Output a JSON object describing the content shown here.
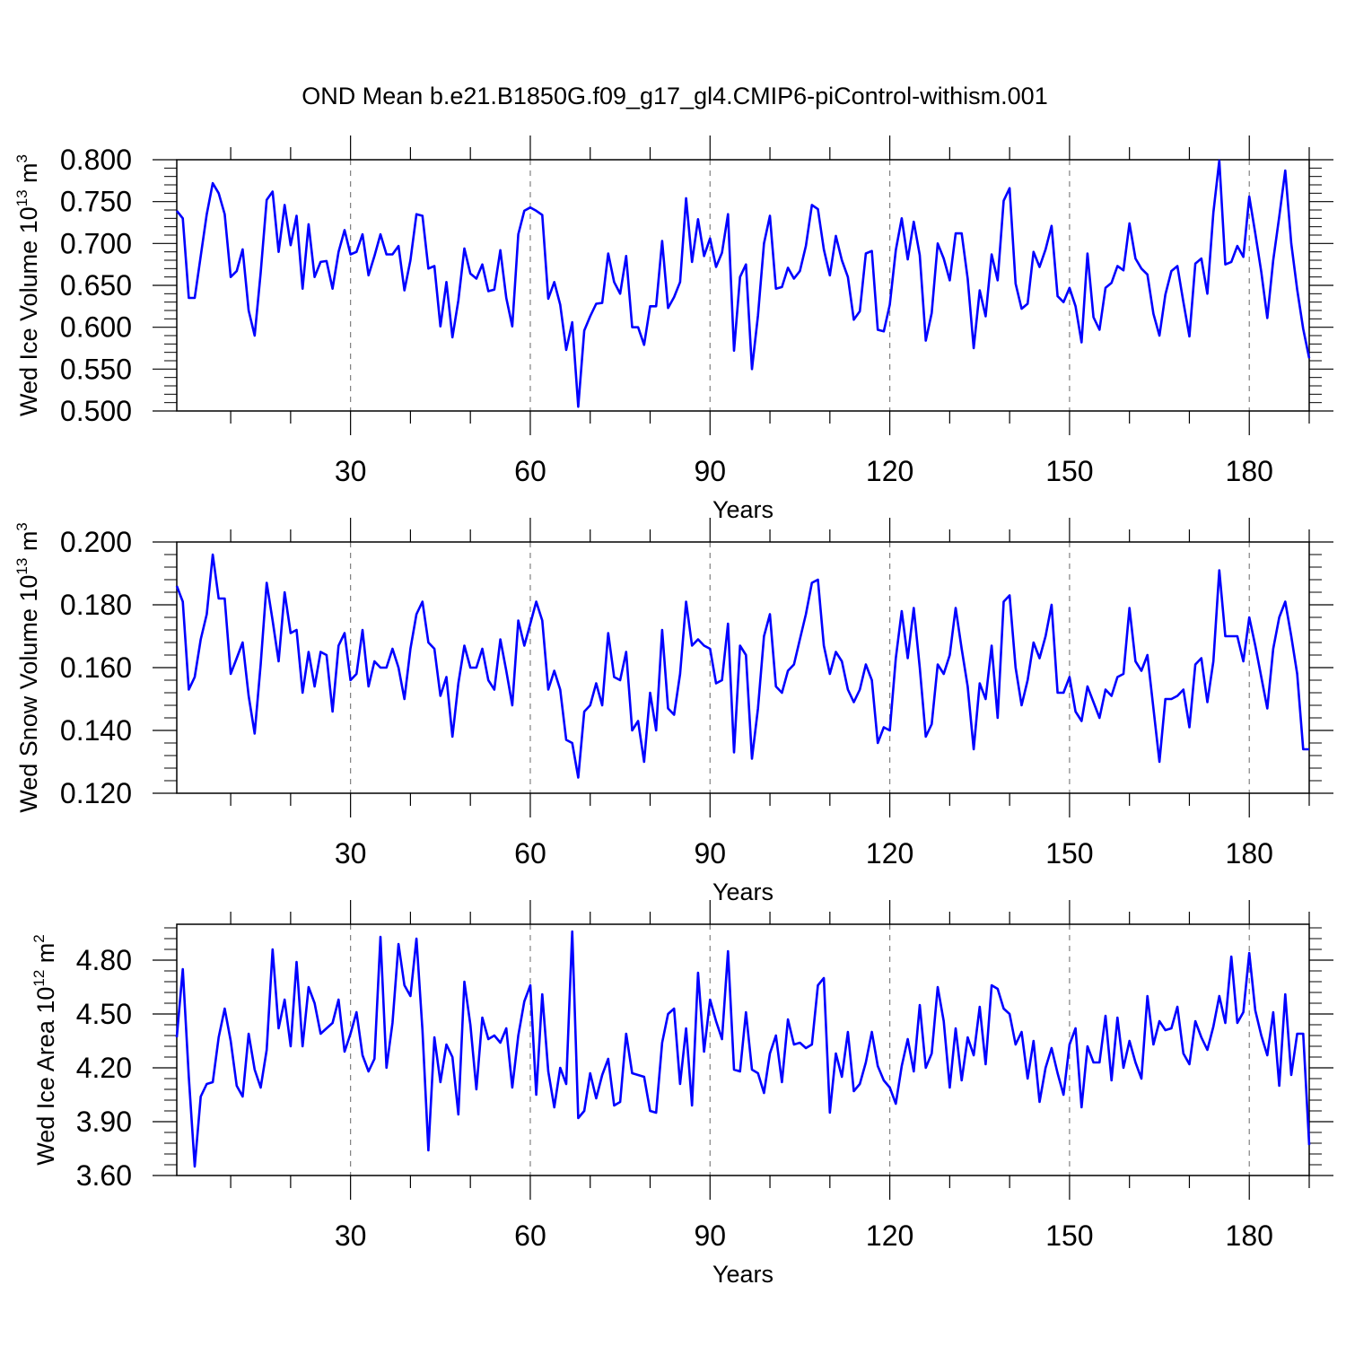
{
  "title": "OND Mean b.e21.B1850G.f09_g17_gl4.CMIP6-piControl-withism.001",
  "colors": {
    "line": "#0000ff",
    "axis": "#000000",
    "grid": "#808080",
    "background": "#ffffff"
  },
  "chart_data": [
    {
      "type": "line",
      "title": "OND Mean b.e21.B1850G.f09_g17_gl4.CMIP6-piControl-withism.001",
      "xlabel": "Years",
      "ylabel": {
        "main": "Wed Ice Volume 10",
        "exp": "13",
        "unit": " m",
        "unit_exp": "3"
      },
      "xlim": [
        1,
        190
      ],
      "ylim": [
        0.5,
        0.8
      ],
      "xticks": [
        30,
        60,
        90,
        120,
        150,
        180
      ],
      "xtick_labels": [
        "30",
        "60",
        "90",
        "120",
        "150",
        "180"
      ],
      "yticks": [
        0.5,
        0.55,
        0.6,
        0.65,
        0.7,
        0.75,
        0.8
      ],
      "ytick_labels": [
        "0.500",
        "0.550",
        "0.600",
        "0.650",
        "0.700",
        "0.750",
        "0.800"
      ],
      "x_start": 1,
      "series": [
        {
          "name": "Wed Ice Volume",
          "values": [
            0.739,
            0.73,
            0.635,
            0.635,
            0.685,
            0.735,
            0.772,
            0.76,
            0.735,
            0.66,
            0.667,
            0.693,
            0.62,
            0.59,
            0.665,
            0.752,
            0.762,
            0.69,
            0.746,
            0.698,
            0.733,
            0.646,
            0.723,
            0.66,
            0.678,
            0.679,
            0.646,
            0.69,
            0.716,
            0.687,
            0.69,
            0.711,
            0.662,
            0.685,
            0.711,
            0.687,
            0.687,
            0.697,
            0.644,
            0.68,
            0.735,
            0.733,
            0.67,
            0.673,
            0.601,
            0.654,
            0.588,
            0.632,
            0.694,
            0.664,
            0.658,
            0.675,
            0.643,
            0.645,
            0.692,
            0.635,
            0.601,
            0.711,
            0.739,
            0.743,
            0.739,
            0.734,
            0.634,
            0.654,
            0.627,
            0.573,
            0.606,
            0.505,
            0.596,
            0.613,
            0.628,
            0.629,
            0.688,
            0.654,
            0.64,
            0.685,
            0.6,
            0.6,
            0.579,
            0.625,
            0.625,
            0.703,
            0.623,
            0.636,
            0.654,
            0.754,
            0.678,
            0.729,
            0.685,
            0.706,
            0.672,
            0.689,
            0.735,
            0.572,
            0.66,
            0.675,
            0.55,
            0.614,
            0.7,
            0.733,
            0.646,
            0.648,
            0.671,
            0.658,
            0.667,
            0.697,
            0.746,
            0.741,
            0.693,
            0.662,
            0.709,
            0.68,
            0.66,
            0.609,
            0.619,
            0.688,
            0.691,
            0.597,
            0.595,
            0.627,
            0.692,
            0.73,
            0.681,
            0.726,
            0.686,
            0.584,
            0.617,
            0.7,
            0.682,
            0.656,
            0.712,
            0.712,
            0.658,
            0.575,
            0.644,
            0.613,
            0.687,
            0.656,
            0.751,
            0.766,
            0.652,
            0.622,
            0.628,
            0.69,
            0.672,
            0.693,
            0.721,
            0.637,
            0.63,
            0.647,
            0.625,
            0.582,
            0.688,
            0.612,
            0.597,
            0.647,
            0.653,
            0.673,
            0.668,
            0.724,
            0.682,
            0.67,
            0.663,
            0.616,
            0.59,
            0.639,
            0.667,
            0.673,
            0.63,
            0.589,
            0.676,
            0.682,
            0.64,
            0.737,
            0.799,
            0.675,
            0.678,
            0.697,
            0.684,
            0.756,
            0.712,
            0.666,
            0.611,
            0.68,
            0.732,
            0.787,
            0.7,
            0.645,
            0.598,
            0.563
          ]
        }
      ]
    },
    {
      "type": "line",
      "xlabel": "Years",
      "ylabel": {
        "main": "Wed Snow Volume 10",
        "exp": "13",
        "unit": " m",
        "unit_exp": "3"
      },
      "xlim": [
        1,
        190
      ],
      "ylim": [
        0.12,
        0.2
      ],
      "xticks": [
        30,
        60,
        90,
        120,
        150,
        180
      ],
      "xtick_labels": [
        "30",
        "60",
        "90",
        "120",
        "150",
        "180"
      ],
      "yticks": [
        0.12,
        0.14,
        0.16,
        0.18,
        0.2
      ],
      "ytick_labels": [
        "0.120",
        "0.140",
        "0.160",
        "0.180",
        "0.200"
      ],
      "x_start": 1,
      "series": [
        {
          "name": "Wed Snow Volume",
          "values": [
            0.186,
            0.181,
            0.153,
            0.157,
            0.169,
            0.177,
            0.196,
            0.182,
            0.182,
            0.158,
            0.163,
            0.168,
            0.151,
            0.139,
            0.161,
            0.187,
            0.175,
            0.162,
            0.184,
            0.171,
            0.172,
            0.152,
            0.165,
            0.154,
            0.165,
            0.164,
            0.146,
            0.167,
            0.171,
            0.156,
            0.158,
            0.172,
            0.154,
            0.162,
            0.16,
            0.16,
            0.166,
            0.16,
            0.15,
            0.166,
            0.177,
            0.181,
            0.168,
            0.166,
            0.151,
            0.157,
            0.138,
            0.155,
            0.167,
            0.16,
            0.16,
            0.166,
            0.156,
            0.153,
            0.169,
            0.159,
            0.148,
            0.175,
            0.167,
            0.174,
            0.181,
            0.175,
            0.153,
            0.159,
            0.153,
            0.137,
            0.136,
            0.125,
            0.146,
            0.148,
            0.155,
            0.148,
            0.171,
            0.157,
            0.156,
            0.165,
            0.14,
            0.143,
            0.13,
            0.152,
            0.14,
            0.172,
            0.147,
            0.145,
            0.158,
            0.181,
            0.167,
            0.169,
            0.167,
            0.166,
            0.155,
            0.156,
            0.174,
            0.133,
            0.167,
            0.164,
            0.131,
            0.147,
            0.17,
            0.177,
            0.154,
            0.152,
            0.159,
            0.161,
            0.169,
            0.177,
            0.187,
            0.188,
            0.167,
            0.158,
            0.165,
            0.162,
            0.153,
            0.149,
            0.153,
            0.161,
            0.156,
            0.136,
            0.141,
            0.14,
            0.163,
            0.178,
            0.163,
            0.179,
            0.16,
            0.138,
            0.142,
            0.161,
            0.158,
            0.164,
            0.179,
            0.166,
            0.154,
            0.134,
            0.155,
            0.15,
            0.167,
            0.144,
            0.181,
            0.183,
            0.16,
            0.148,
            0.156,
            0.168,
            0.163,
            0.17,
            0.18,
            0.152,
            0.152,
            0.157,
            0.146,
            0.143,
            0.154,
            0.149,
            0.144,
            0.153,
            0.151,
            0.157,
            0.158,
            0.179,
            0.162,
            0.159,
            0.164,
            0.147,
            0.13,
            0.15,
            0.15,
            0.151,
            0.153,
            0.141,
            0.161,
            0.163,
            0.149,
            0.162,
            0.191,
            0.17,
            0.17,
            0.17,
            0.162,
            0.176,
            0.167,
            0.157,
            0.147,
            0.166,
            0.176,
            0.181,
            0.17,
            0.158,
            0.134,
            0.134
          ]
        }
      ]
    },
    {
      "type": "line",
      "xlabel": "Years",
      "ylabel": {
        "main": "Wed Ice Area 10",
        "exp": "12",
        "unit": " m",
        "unit_exp": "2"
      },
      "xlim": [
        1,
        190
      ],
      "ylim": [
        3.6,
        5.0
      ],
      "xticks": [
        30,
        60,
        90,
        120,
        150,
        180
      ],
      "xtick_labels": [
        "30",
        "60",
        "90",
        "120",
        "150",
        "180"
      ],
      "yticks": [
        3.6,
        3.9,
        4.2,
        4.5,
        4.8
      ],
      "ytick_labels": [
        "3.60",
        "3.90",
        "4.20",
        "4.50",
        "4.80"
      ],
      "x_start": 1,
      "series": [
        {
          "name": "Wed Ice Area",
          "values": [
            4.37,
            4.75,
            4.15,
            3.65,
            4.04,
            4.11,
            4.12,
            4.37,
            4.53,
            4.35,
            4.1,
            4.04,
            4.39,
            4.19,
            4.09,
            4.3,
            4.86,
            4.42,
            4.58,
            4.32,
            4.79,
            4.32,
            4.65,
            4.56,
            4.39,
            4.42,
            4.45,
            4.58,
            4.29,
            4.39,
            4.51,
            4.27,
            4.18,
            4.25,
            4.93,
            4.2,
            4.45,
            4.89,
            4.66,
            4.6,
            4.92,
            4.41,
            3.74,
            4.37,
            4.12,
            4.33,
            4.26,
            3.94,
            4.68,
            4.44,
            4.08,
            4.48,
            4.36,
            4.38,
            4.34,
            4.42,
            4.09,
            4.38,
            4.57,
            4.66,
            4.05,
            4.61,
            4.18,
            3.98,
            4.2,
            4.11,
            4.96,
            3.92,
            3.96,
            4.17,
            4.03,
            4.16,
            4.25,
            3.99,
            4.01,
            4.39,
            4.17,
            4.16,
            4.15,
            3.96,
            3.95,
            4.34,
            4.5,
            4.53,
            4.11,
            4.42,
            3.99,
            4.73,
            4.29,
            4.58,
            4.46,
            4.36,
            4.85,
            4.19,
            4.18,
            4.51,
            4.19,
            4.17,
            4.06,
            4.28,
            4.38,
            4.12,
            4.47,
            4.33,
            4.34,
            4.31,
            4.33,
            4.66,
            4.7,
            3.95,
            4.28,
            4.15,
            4.4,
            4.07,
            4.11,
            4.23,
            4.4,
            4.21,
            4.13,
            4.09,
            4.0,
            4.21,
            4.36,
            4.18,
            4.55,
            4.2,
            4.28,
            4.65,
            4.46,
            4.09,
            4.42,
            4.13,
            4.37,
            4.27,
            4.54,
            4.22,
            4.66,
            4.64,
            4.53,
            4.5,
            4.33,
            4.4,
            4.14,
            4.35,
            4.01,
            4.2,
            4.31,
            4.17,
            4.05,
            4.33,
            4.42,
            3.98,
            4.32,
            4.23,
            4.23,
            4.49,
            4.13,
            4.48,
            4.2,
            4.35,
            4.23,
            4.14,
            4.6,
            4.33,
            4.46,
            4.41,
            4.42,
            4.54,
            4.28,
            4.22,
            4.46,
            4.37,
            4.3,
            4.43,
            4.6,
            4.45,
            4.82,
            4.45,
            4.51,
            4.84,
            4.52,
            4.38,
            4.27,
            4.51,
            4.1,
            4.61,
            4.16,
            4.39,
            4.39,
            3.77
          ]
        }
      ]
    }
  ]
}
